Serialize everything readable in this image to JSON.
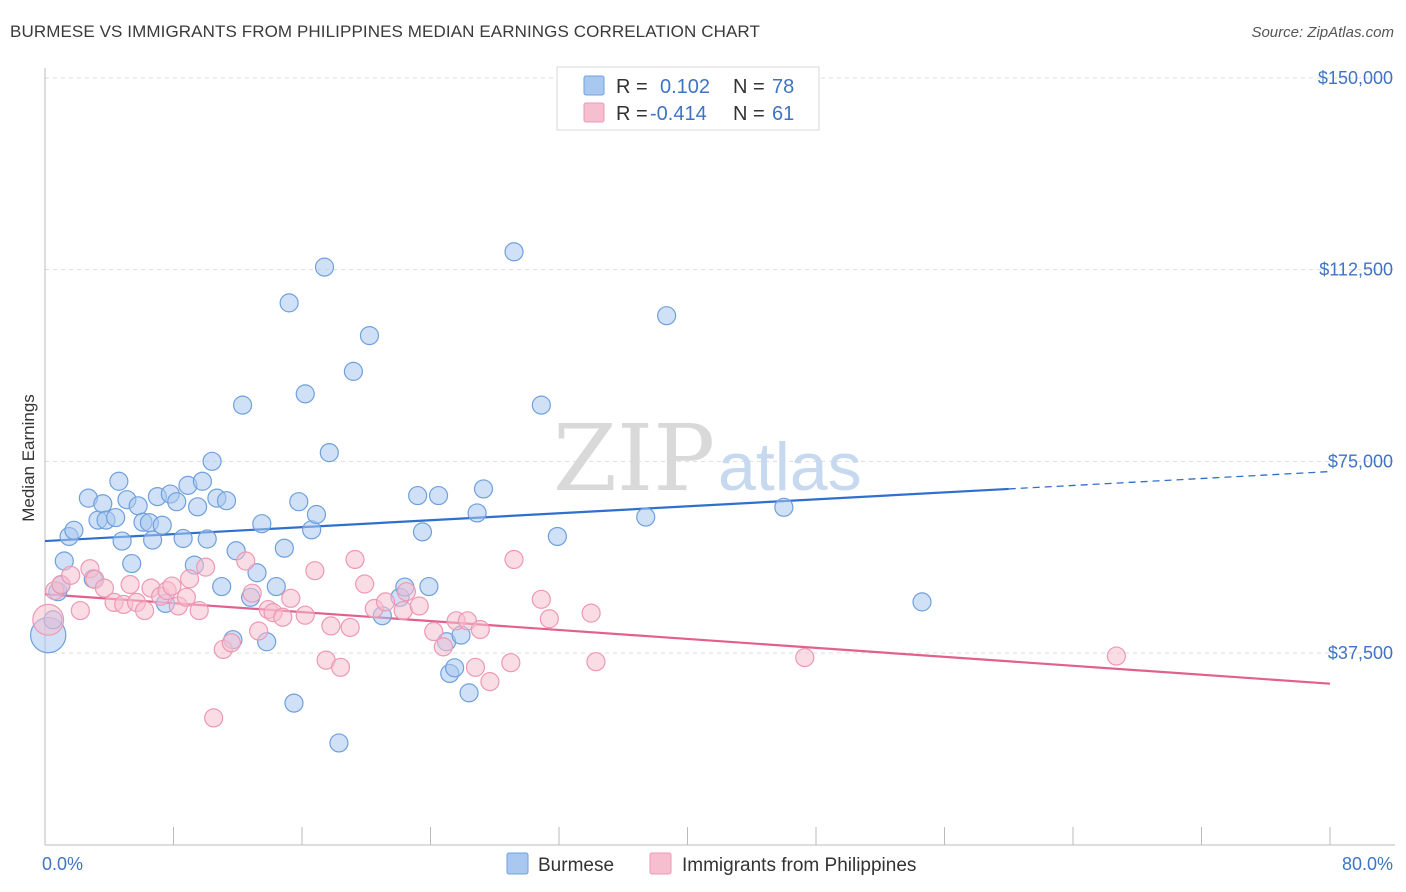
{
  "header": {
    "title": "BURMESE VS IMMIGRANTS FROM PHILIPPINES MEDIAN EARNINGS CORRELATION CHART",
    "source": "Source: ZipAtlas.com"
  },
  "watermark": {
    "part1": "ZIP",
    "part2": "atlas"
  },
  "colors": {
    "blue_fill": "#a9c8f0",
    "blue_stroke": "#6fa0dc",
    "blue_line": "#2f6fce",
    "pink_fill": "#f6bfd0",
    "pink_stroke": "#ee98b4",
    "pink_line": "#e2608e",
    "label_blue": "#3f74c4",
    "grid": "#dddddd"
  },
  "legend": {
    "rows": [
      {
        "r_label": "R =",
        "r_value": "0.102",
        "n_label": "N =",
        "n_value": "78"
      },
      {
        "r_label": "R =",
        "r_value": "-0.414",
        "n_label": "N =",
        "n_value": "61"
      }
    ]
  },
  "bottom_legend": {
    "series1": "Burmese",
    "series2": "Immigrants from Philippines"
  },
  "chart_data": {
    "type": "scatter",
    "title": "BURMESE VS IMMIGRANTS FROM PHILIPPINES MEDIAN EARNINGS CORRELATION CHART",
    "xlabel": "",
    "ylabel": "Median Earnings",
    "xlim": [
      0,
      80
    ],
    "ylim": [
      3000,
      155000
    ],
    "x_tick_labels": [
      "0.0%",
      "80.0%"
    ],
    "y_ticks": [
      37500,
      75000,
      112500,
      150000
    ],
    "y_tick_labels": [
      "$37,500",
      "$75,000",
      "$112,500",
      "$150,000"
    ],
    "grid": true,
    "legend_position": "top-center",
    "series": [
      {
        "name": "Burmese",
        "color": "#a9c8f0",
        "r": 0.102,
        "n": 78,
        "trend": {
          "x0": 0,
          "y0": 59400,
          "x1": 60,
          "y1": 69600,
          "dashed_to_x": 80,
          "dashed_to_y": 73000
        },
        "points": [
          [
            0.2,
            41000,
            16
          ],
          [
            0.5,
            44000,
            8
          ],
          [
            0.8,
            49500,
            8
          ],
          [
            1.0,
            50800,
            8
          ],
          [
            1.2,
            55500,
            8
          ],
          [
            1.5,
            60300,
            8
          ],
          [
            1.8,
            61500,
            8
          ],
          [
            2.7,
            67800,
            8
          ],
          [
            3.0,
            52000,
            8
          ],
          [
            3.3,
            63500,
            8
          ],
          [
            3.6,
            66700,
            8
          ],
          [
            3.8,
            63500,
            8
          ],
          [
            4.4,
            64000,
            8
          ],
          [
            4.6,
            71100,
            8
          ],
          [
            4.8,
            59400,
            8
          ],
          [
            5.1,
            67500,
            8
          ],
          [
            5.4,
            55000,
            8
          ],
          [
            5.8,
            66300,
            8
          ],
          [
            6.1,
            63100,
            8
          ],
          [
            6.5,
            63000,
            8
          ],
          [
            6.7,
            59600,
            8
          ],
          [
            7.0,
            68100,
            8
          ],
          [
            7.3,
            62500,
            8
          ],
          [
            7.5,
            47200,
            8
          ],
          [
            7.8,
            68600,
            8
          ],
          [
            8.2,
            67100,
            8
          ],
          [
            8.6,
            59900,
            8
          ],
          [
            8.9,
            70300,
            8
          ],
          [
            9.3,
            54700,
            8
          ],
          [
            9.5,
            66100,
            8
          ],
          [
            9.8,
            71100,
            8
          ],
          [
            10.1,
            59800,
            8
          ],
          [
            10.4,
            75000,
            8
          ],
          [
            10.7,
            67800,
            8
          ],
          [
            11.0,
            50500,
            8
          ],
          [
            11.3,
            67300,
            8
          ],
          [
            11.7,
            40100,
            8
          ],
          [
            11.9,
            57500,
            8
          ],
          [
            12.3,
            86000,
            8
          ],
          [
            12.8,
            48400,
            8
          ],
          [
            13.2,
            53200,
            8
          ],
          [
            13.5,
            62800,
            8
          ],
          [
            13.8,
            39700,
            8
          ],
          [
            14.4,
            50500,
            8
          ],
          [
            14.9,
            58000,
            8
          ],
          [
            15.2,
            106000,
            8
          ],
          [
            15.5,
            27700,
            8
          ],
          [
            15.8,
            67100,
            8
          ],
          [
            16.2,
            88200,
            8
          ],
          [
            16.6,
            61600,
            8
          ],
          [
            16.9,
            64600,
            8
          ],
          [
            17.4,
            113000,
            8
          ],
          [
            17.7,
            76700,
            8
          ],
          [
            18.3,
            19900,
            8
          ],
          [
            19.2,
            92600,
            8
          ],
          [
            20.2,
            99600,
            8
          ],
          [
            21.0,
            44800,
            8
          ],
          [
            22.1,
            48400,
            8
          ],
          [
            22.4,
            50400,
            8
          ],
          [
            23.2,
            68300,
            8
          ],
          [
            23.5,
            61200,
            8
          ],
          [
            23.9,
            50500,
            8
          ],
          [
            24.5,
            68300,
            8
          ],
          [
            25.0,
            39700,
            8
          ],
          [
            25.2,
            33500,
            8
          ],
          [
            25.5,
            34600,
            8
          ],
          [
            25.9,
            41000,
            8
          ],
          [
            26.4,
            29700,
            8
          ],
          [
            26.9,
            64900,
            8
          ],
          [
            27.3,
            69600,
            8
          ],
          [
            29.2,
            116000,
            8
          ],
          [
            30.9,
            86000,
            8
          ],
          [
            31.9,
            60300,
            8
          ],
          [
            37.4,
            64100,
            8
          ],
          [
            38.7,
            103500,
            8
          ],
          [
            46.0,
            66000,
            8
          ],
          [
            54.6,
            47500,
            8
          ]
        ]
      },
      {
        "name": "Immigrants from Philippines",
        "color": "#f6bfd0",
        "r": -0.414,
        "n": 61,
        "trend": {
          "x0": 0,
          "y0": 49000,
          "x1": 80,
          "y1": 31500
        },
        "points": [
          [
            0.2,
            44000,
            14
          ],
          [
            0.6,
            49700,
            8
          ],
          [
            1.0,
            50900,
            8
          ],
          [
            1.6,
            52700,
            8
          ],
          [
            2.2,
            45800,
            8
          ],
          [
            2.8,
            54000,
            8
          ],
          [
            3.1,
            51900,
            8
          ],
          [
            3.7,
            50200,
            8
          ],
          [
            4.3,
            47400,
            8
          ],
          [
            4.9,
            47000,
            8
          ],
          [
            5.3,
            50900,
            8
          ],
          [
            5.7,
            47400,
            8
          ],
          [
            6.2,
            45800,
            8
          ],
          [
            6.6,
            50200,
            8
          ],
          [
            7.2,
            48600,
            8
          ],
          [
            7.6,
            49700,
            8
          ],
          [
            7.9,
            50600,
            8
          ],
          [
            8.3,
            46700,
            8
          ],
          [
            8.8,
            48400,
            8
          ],
          [
            9.0,
            52000,
            8
          ],
          [
            9.6,
            45800,
            8
          ],
          [
            10.0,
            54300,
            8
          ],
          [
            10.5,
            24800,
            8
          ],
          [
            11.1,
            38200,
            8
          ],
          [
            11.6,
            39500,
            8
          ],
          [
            12.5,
            55500,
            8
          ],
          [
            12.9,
            49200,
            8
          ],
          [
            13.3,
            41800,
            8
          ],
          [
            13.9,
            46000,
            8
          ],
          [
            14.2,
            45400,
            8
          ],
          [
            14.8,
            44500,
            8
          ],
          [
            15.3,
            48200,
            8
          ],
          [
            16.2,
            44900,
            8
          ],
          [
            16.8,
            53600,
            8
          ],
          [
            17.5,
            36100,
            8
          ],
          [
            17.8,
            42800,
            8
          ],
          [
            18.4,
            34700,
            8
          ],
          [
            19.0,
            42500,
            8
          ],
          [
            19.3,
            55800,
            8
          ],
          [
            19.9,
            51000,
            8
          ],
          [
            20.5,
            46200,
            8
          ],
          [
            21.2,
            47500,
            8
          ],
          [
            22.3,
            45800,
            8
          ],
          [
            22.5,
            49500,
            8
          ],
          [
            23.3,
            46700,
            8
          ],
          [
            24.2,
            41700,
            8
          ],
          [
            24.8,
            38700,
            8
          ],
          [
            25.6,
            43800,
            8
          ],
          [
            26.3,
            43800,
            8
          ],
          [
            26.8,
            34700,
            8
          ],
          [
            27.1,
            42100,
            8
          ],
          [
            27.7,
            31900,
            8
          ],
          [
            29.0,
            35600,
            8
          ],
          [
            29.2,
            55800,
            8
          ],
          [
            30.9,
            48000,
            8
          ],
          [
            31.4,
            44200,
            8
          ],
          [
            34.0,
            45300,
            8
          ],
          [
            34.3,
            35800,
            8
          ],
          [
            47.3,
            36600,
            8
          ],
          [
            66.7,
            36900,
            8
          ]
        ]
      }
    ]
  }
}
